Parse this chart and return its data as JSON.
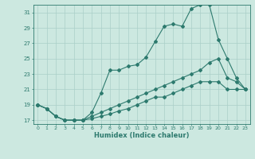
{
  "xlabel": "Humidex (Indice chaleur)",
  "background_color": "#cce8e0",
  "line_color": "#2d7a6e",
  "grid_color": "#aacfc8",
  "xlim": [
    -0.5,
    23.5
  ],
  "ylim": [
    16.5,
    32.0
  ],
  "xticks": [
    0,
    1,
    2,
    3,
    4,
    5,
    6,
    7,
    8,
    9,
    10,
    11,
    12,
    13,
    14,
    15,
    16,
    17,
    18,
    19,
    20,
    21,
    22,
    23
  ],
  "yticks": [
    17,
    19,
    21,
    23,
    25,
    27,
    29,
    31
  ],
  "line1_x": [
    0,
    1,
    2,
    3,
    4,
    5,
    6,
    7,
    8,
    9,
    10,
    11,
    12,
    13,
    14,
    15,
    16,
    17,
    18,
    19,
    20,
    21,
    22,
    23
  ],
  "line1_y": [
    19,
    18.5,
    17.5,
    17,
    17,
    17,
    18,
    20.5,
    23.5,
    23.5,
    24,
    24.2,
    25.2,
    27.2,
    29.2,
    29.5,
    29.2,
    31.5,
    32,
    32,
    27.5,
    25,
    22.5,
    21
  ],
  "line2_x": [
    0,
    1,
    2,
    3,
    4,
    5,
    6,
    7,
    8,
    9,
    10,
    11,
    12,
    13,
    14,
    15,
    16,
    17,
    18,
    19,
    20,
    21,
    22,
    23
  ],
  "line2_y": [
    19,
    18.5,
    17.5,
    17,
    17,
    17,
    17.5,
    18,
    18.5,
    19,
    19.5,
    20,
    20.5,
    21,
    21.5,
    22,
    22.5,
    23,
    23.5,
    24.5,
    25,
    22.5,
    22,
    21
  ],
  "line3_x": [
    0,
    1,
    2,
    3,
    4,
    5,
    6,
    7,
    8,
    9,
    10,
    11,
    12,
    13,
    14,
    15,
    16,
    17,
    18,
    19,
    20,
    21,
    22,
    23
  ],
  "line3_y": [
    19,
    18.5,
    17.5,
    17,
    17,
    17,
    17.2,
    17.5,
    17.8,
    18.2,
    18.5,
    19,
    19.5,
    20,
    20,
    20.5,
    21,
    21.5,
    22,
    22,
    22,
    21,
    21,
    21
  ]
}
